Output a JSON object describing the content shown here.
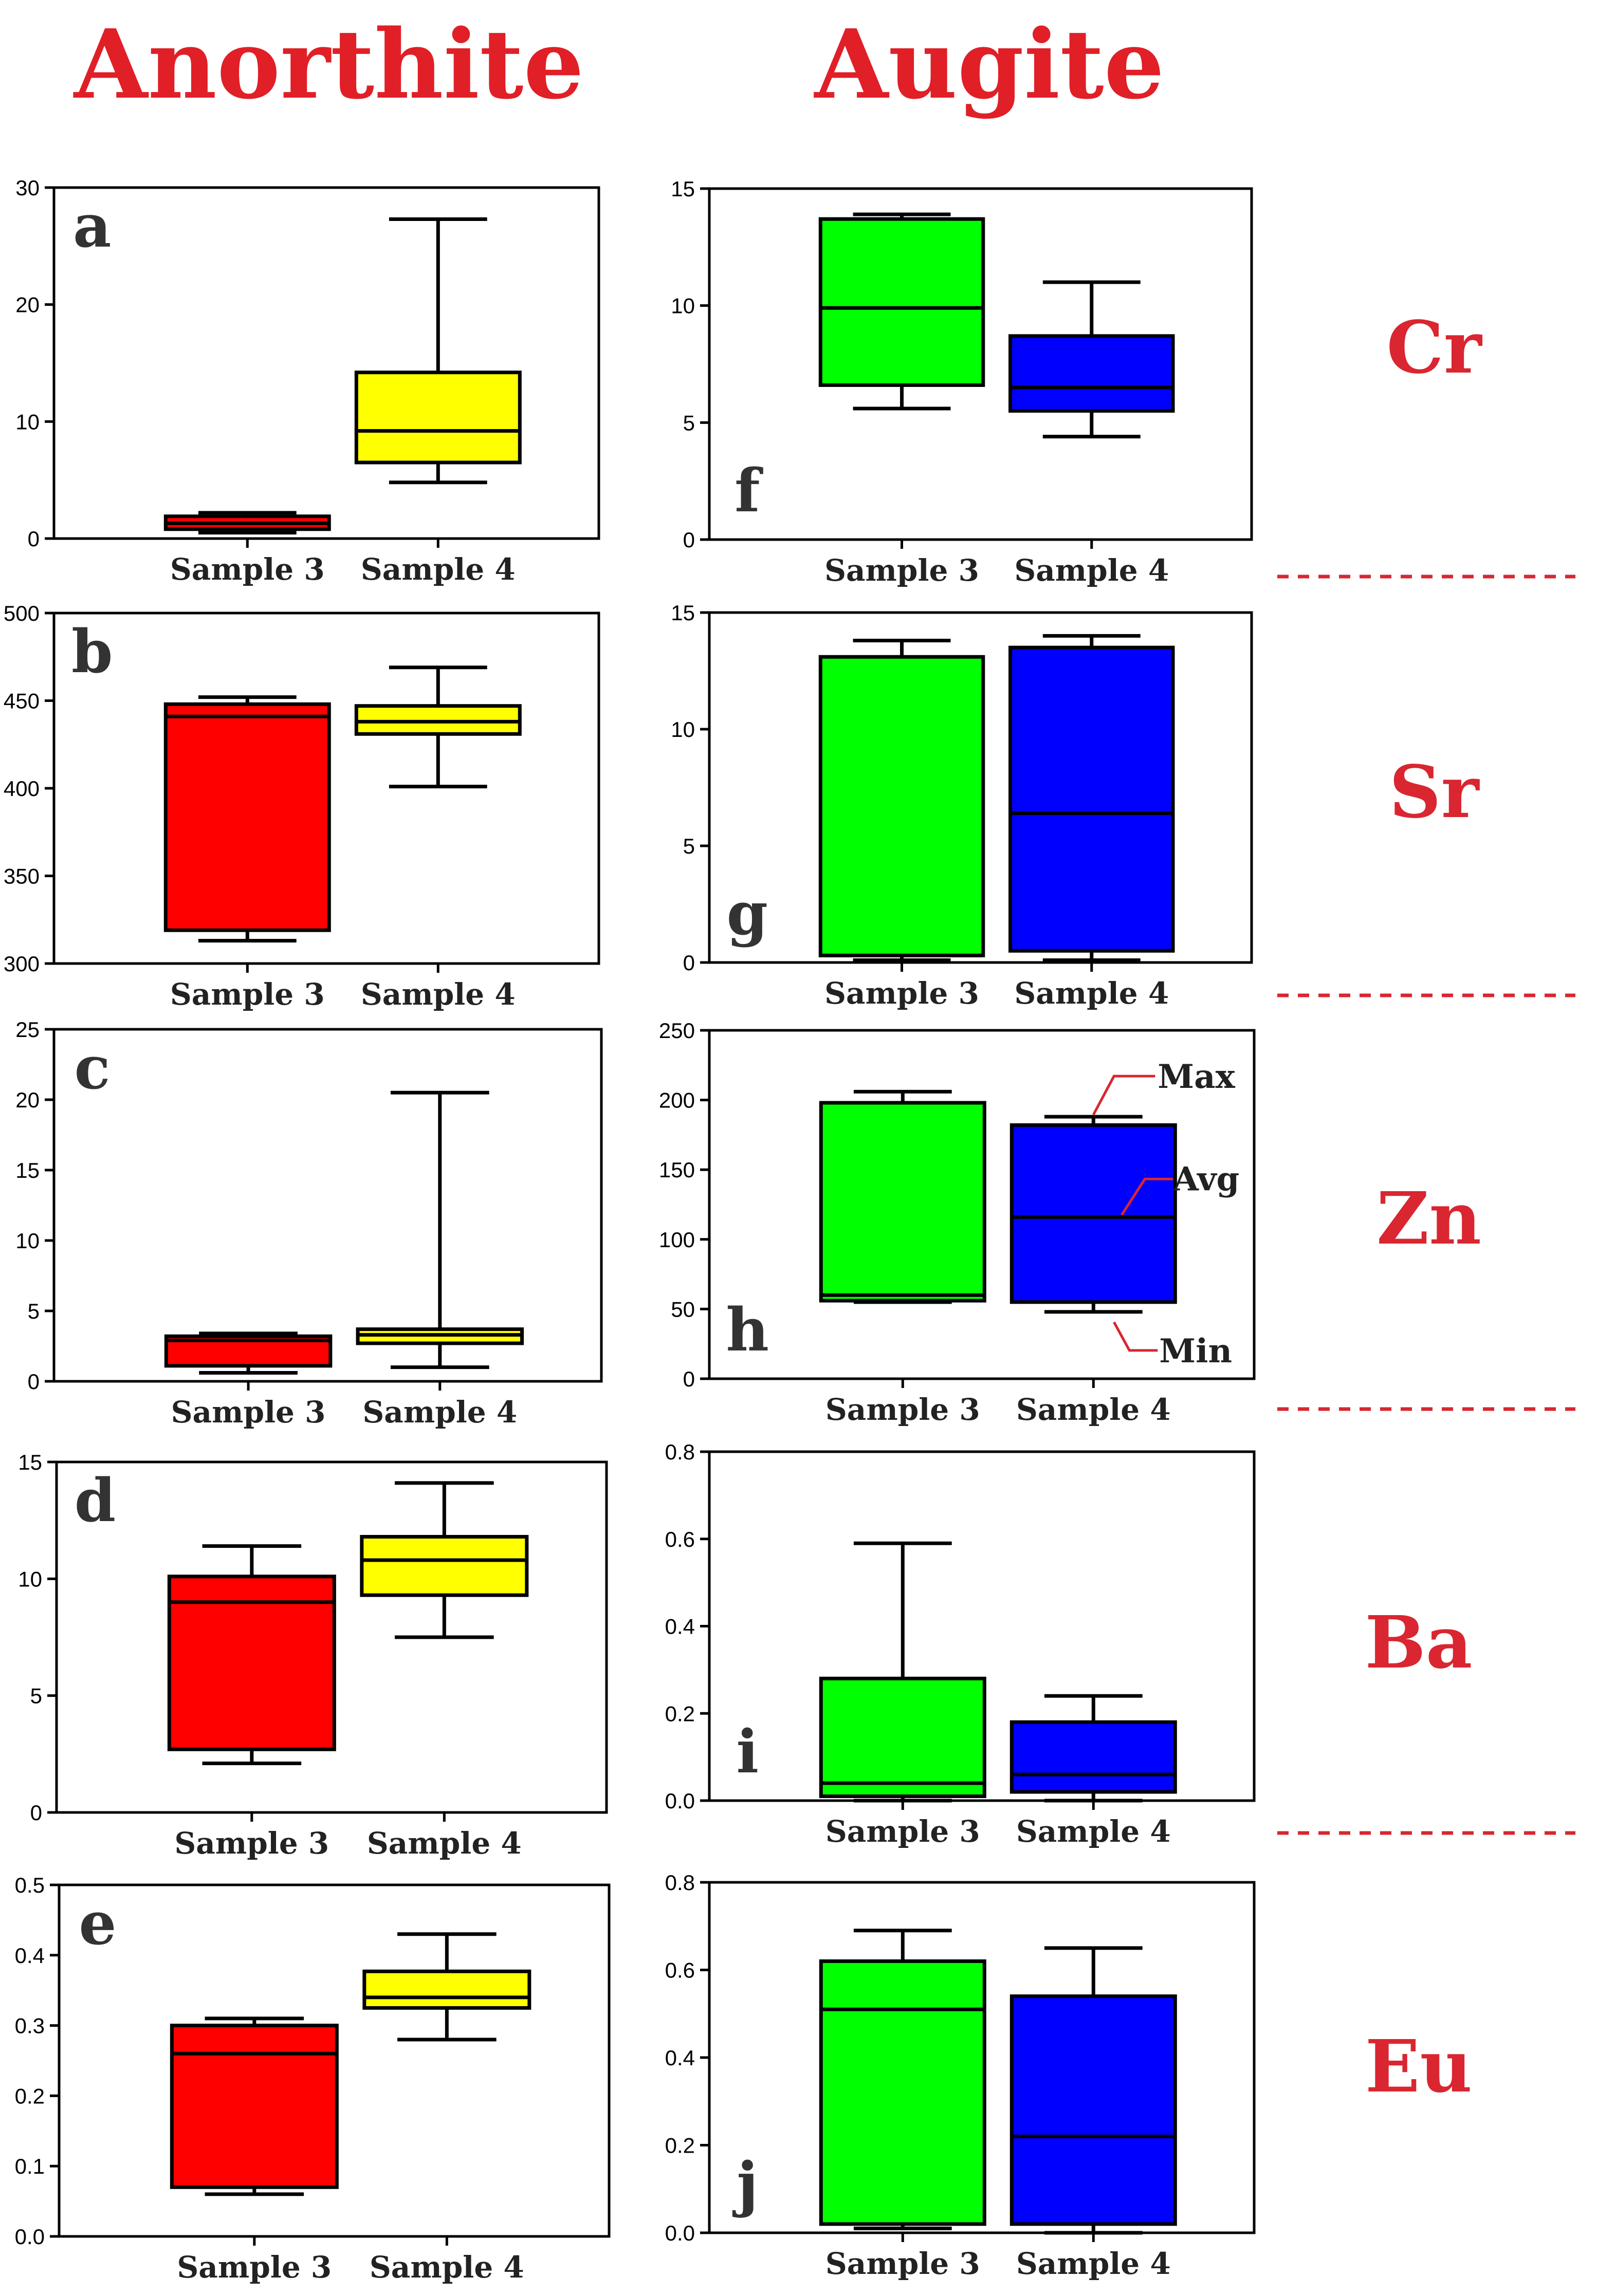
{
  "titles": {
    "left": "Anorthite",
    "right": "Augite"
  },
  "row_labels": [
    "Cr",
    "Sr",
    "Zn",
    "Ba",
    "Eu"
  ],
  "colors": {
    "title": "#e01f27",
    "row_label": "#d92630",
    "separator": "#d92630",
    "annotation_line": "#d92630",
    "sample3_anorthite": "#ff0000",
    "sample4_anorthite": "#ffff00",
    "sample3_augite": "#00ff00",
    "sample4_augite": "#0000ff"
  },
  "annotations": {
    "max": "Max",
    "avg": "Avg",
    "min": "Min"
  },
  "chart_data": [
    {
      "id": "a",
      "type": "box",
      "mineral": "Anorthite",
      "element": "Cr",
      "letter": "a",
      "categories": [
        "Sample 3",
        "Sample 4"
      ],
      "ylim": [
        0,
        30
      ],
      "yticks": [
        0,
        10,
        20,
        30
      ],
      "boxes": [
        {
          "name": "Sample 3",
          "color": "#ff0000",
          "min": 0.5,
          "q1": 0.8,
          "median": 1.3,
          "q3": 1.9,
          "max": 2.2
        },
        {
          "name": "Sample 4",
          "color": "#ffff00",
          "min": 4.8,
          "q1": 6.5,
          "median": 9.2,
          "q3": 14.2,
          "max": 27.3
        }
      ]
    },
    {
      "id": "f",
      "type": "box",
      "mineral": "Augite",
      "element": "Cr",
      "letter": "f",
      "categories": [
        "Sample 3",
        "Sample 4"
      ],
      "ylim": [
        0,
        15
      ],
      "yticks": [
        0,
        5,
        10,
        15
      ],
      "boxes": [
        {
          "name": "Sample 3",
          "color": "#00ff00",
          "min": 5.6,
          "q1": 6.6,
          "median": 9.9,
          "q3": 13.7,
          "max": 13.9
        },
        {
          "name": "Sample 4",
          "color": "#0000ff",
          "min": 4.4,
          "q1": 5.5,
          "median": 6.5,
          "q3": 8.7,
          "max": 11.0
        }
      ]
    },
    {
      "id": "b",
      "type": "box",
      "mineral": "Anorthite",
      "element": "Sr",
      "letter": "b",
      "categories": [
        "Sample 3",
        "Sample 4"
      ],
      "ylim": [
        300,
        500
      ],
      "yticks": [
        300,
        350,
        400,
        450,
        500
      ],
      "boxes": [
        {
          "name": "Sample 3",
          "color": "#ff0000",
          "min": 313,
          "q1": 319,
          "median": 441,
          "q3": 448,
          "max": 452
        },
        {
          "name": "Sample 4",
          "color": "#ffff00",
          "min": 401,
          "q1": 431,
          "median": 438,
          "q3": 447,
          "max": 469
        }
      ]
    },
    {
      "id": "g",
      "type": "box",
      "mineral": "Augite",
      "element": "Sr",
      "letter": "g",
      "categories": [
        "Sample 3",
        "Sample 4"
      ],
      "ylim": [
        0,
        15
      ],
      "yticks": [
        0,
        5,
        10,
        15
      ],
      "boxes": [
        {
          "name": "Sample 3",
          "color": "#00ff00",
          "min": 0.1,
          "q1": 0.3,
          "median": 0.3,
          "q3": 13.1,
          "max": 13.8
        },
        {
          "name": "Sample 4",
          "color": "#0000ff",
          "min": 0.1,
          "q1": 0.5,
          "median": 6.4,
          "q3": 13.5,
          "max": 14.0
        }
      ]
    },
    {
      "id": "c",
      "type": "box",
      "mineral": "Anorthite",
      "element": "Zn",
      "letter": "c",
      "categories": [
        "Sample 3",
        "Sample 4"
      ],
      "ylim": [
        0,
        25
      ],
      "yticks": [
        0,
        5,
        10,
        15,
        20,
        25
      ],
      "boxes": [
        {
          "name": "Sample 3",
          "color": "#ff0000",
          "min": 0.6,
          "q1": 1.1,
          "median": 2.9,
          "q3": 3.2,
          "max": 3.4
        },
        {
          "name": "Sample 4",
          "color": "#ffff00",
          "min": 1.0,
          "q1": 2.7,
          "median": 3.3,
          "q3": 3.7,
          "max": 20.5
        }
      ]
    },
    {
      "id": "h",
      "type": "box",
      "mineral": "Augite",
      "element": "Zn",
      "letter": "h",
      "categories": [
        "Sample 3",
        "Sample 4"
      ],
      "ylim": [
        0,
        250
      ],
      "yticks": [
        0,
        50,
        100,
        150,
        200,
        250
      ],
      "annotated": true,
      "boxes": [
        {
          "name": "Sample 3",
          "color": "#00ff00",
          "min": 55,
          "q1": 56,
          "median": 60,
          "q3": 198,
          "max": 206
        },
        {
          "name": "Sample 4",
          "color": "#0000ff",
          "min": 48,
          "q1": 55,
          "median": 116,
          "q3": 182,
          "max": 188
        }
      ]
    },
    {
      "id": "d",
      "type": "box",
      "mineral": "Anorthite",
      "element": "Ba",
      "letter": "d",
      "categories": [
        "Sample 3",
        "Sample 4"
      ],
      "ylim": [
        0,
        15
      ],
      "yticks": [
        0,
        5,
        10,
        15
      ],
      "boxes": [
        {
          "name": "Sample 3",
          "color": "#ff0000",
          "min": 2.1,
          "q1": 2.7,
          "median": 9.0,
          "q3": 10.1,
          "max": 11.4
        },
        {
          "name": "Sample 4",
          "color": "#ffff00",
          "min": 7.5,
          "q1": 9.3,
          "median": 10.8,
          "q3": 11.8,
          "max": 14.1
        }
      ]
    },
    {
      "id": "i",
      "type": "box",
      "mineral": "Augite",
      "element": "Ba",
      "letter": "i",
      "categories": [
        "Sample 3",
        "Sample 4"
      ],
      "ylim": [
        0,
        0.8
      ],
      "yticks": [
        0.0,
        0.2,
        0.4,
        0.6,
        0.8
      ],
      "boxes": [
        {
          "name": "Sample 3",
          "color": "#00ff00",
          "min": 0.0,
          "q1": 0.01,
          "median": 0.04,
          "q3": 0.28,
          "max": 0.59
        },
        {
          "name": "Sample 4",
          "color": "#0000ff",
          "min": 0.0,
          "q1": 0.02,
          "median": 0.06,
          "q3": 0.18,
          "max": 0.24
        }
      ]
    },
    {
      "id": "e",
      "type": "box",
      "mineral": "Anorthite",
      "element": "Eu",
      "letter": "e",
      "categories": [
        "Sample 3",
        "Sample 4"
      ],
      "ylim": [
        0,
        0.5
      ],
      "yticks": [
        0.0,
        0.1,
        0.2,
        0.3,
        0.4,
        0.5
      ],
      "boxes": [
        {
          "name": "Sample 3",
          "color": "#ff0000",
          "min": 0.06,
          "q1": 0.07,
          "median": 0.26,
          "q3": 0.3,
          "max": 0.31
        },
        {
          "name": "Sample 4",
          "color": "#ffff00",
          "min": 0.28,
          "q1": 0.325,
          "median": 0.34,
          "q3": 0.377,
          "max": 0.43
        }
      ]
    },
    {
      "id": "j",
      "type": "box",
      "mineral": "Augite",
      "element": "Eu",
      "letter": "j",
      "categories": [
        "Sample 3",
        "Sample 4"
      ],
      "ylim": [
        0,
        0.8
      ],
      "yticks": [
        0.0,
        0.2,
        0.4,
        0.6,
        0.8
      ],
      "boxes": [
        {
          "name": "Sample 3",
          "color": "#00ff00",
          "min": 0.01,
          "q1": 0.02,
          "median": 0.51,
          "q3": 0.62,
          "max": 0.69
        },
        {
          "name": "Sample 4",
          "color": "#0000ff",
          "min": 0.0,
          "q1": 0.02,
          "median": 0.22,
          "q3": 0.54,
          "max": 0.65
        }
      ]
    }
  ]
}
